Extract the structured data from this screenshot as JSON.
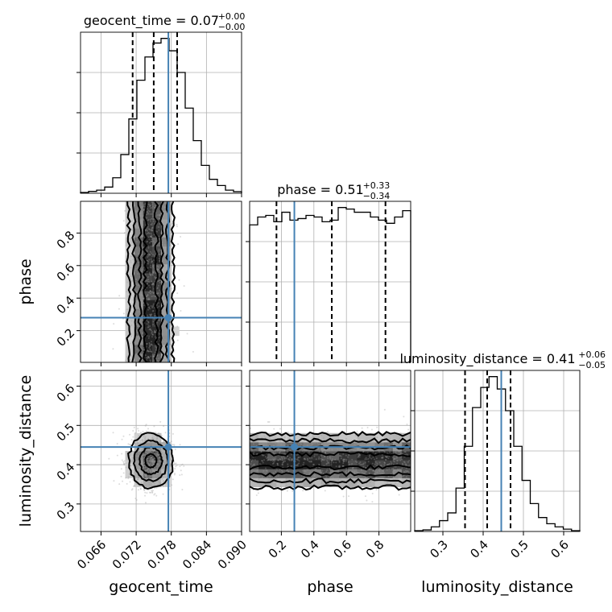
{
  "chart_data": {
    "type": "corner",
    "params": [
      "geocent_time",
      "phase",
      "luminosity_distance"
    ],
    "truth_color": "#4682b4",
    "truths": {
      "geocent_time": 0.0775,
      "phase": 0.28,
      "luminosity_distance": 0.445
    },
    "ranges": {
      "geocent_time": [
        0.0625,
        0.09
      ],
      "phase": [
        0.005,
        0.995
      ],
      "luminosity_distance": [
        0.23,
        0.64
      ]
    },
    "ticks": {
      "geocent_time": [
        0.066,
        0.072,
        0.078,
        0.084,
        0.09
      ],
      "phase": [
        0.2,
        0.4,
        0.6,
        0.8
      ],
      "luminosity_distance": [
        0.3,
        0.4,
        0.5,
        0.6
      ]
    },
    "tick_labels": {
      "geocent_time": [
        "0.066",
        "0.072",
        "0.078",
        "0.084",
        "0.090"
      ],
      "phase": [
        "0.2",
        "0.4",
        "0.6",
        "0.8"
      ],
      "luminosity_distance": [
        "0.3",
        "0.4",
        "0.5",
        "0.6"
      ]
    },
    "axis_labels": {
      "geocent_time": "geocent_time",
      "phase": "phase",
      "luminosity_distance": "luminosity_distance"
    },
    "titles": [
      {
        "param": "geocent_time",
        "text": "geocent_time = 0.07",
        "sup": "+0.00",
        "sub": "−0.00"
      },
      {
        "param": "phase",
        "text": "phase = 0.51",
        "sup": "+0.33",
        "sub": "−0.34"
      },
      {
        "param": "luminosity_distance",
        "text": "luminosity_distance = 0.41",
        "sup": "+0.06",
        "sub": "−0.05"
      }
    ],
    "quantiles": {
      "geocent_time": [
        0.0714,
        0.075,
        0.079
      ],
      "phase": [
        0.17,
        0.51,
        0.84
      ],
      "luminosity_distance": [
        0.355,
        0.41,
        0.468
      ]
    },
    "histograms": {
      "geocent_time": [
        0.005,
        0.012,
        0.02,
        0.04,
        0.1,
        0.25,
        0.48,
        0.73,
        0.88,
        0.97,
        1.0,
        0.92,
        0.78,
        0.55,
        0.34,
        0.18,
        0.09,
        0.05,
        0.02,
        0.01
      ],
      "phase": [
        0.87,
        0.92,
        0.93,
        0.89,
        0.95,
        0.9,
        0.91,
        0.93,
        0.92,
        0.89,
        0.9,
        0.98,
        0.97,
        0.95,
        0.95,
        0.92,
        0.9,
        0.88,
        0.92,
        0.96
      ],
      "luminosity_distance": [
        0.005,
        0.01,
        0.03,
        0.07,
        0.12,
        0.28,
        0.55,
        0.8,
        0.93,
        1.0,
        0.92,
        0.78,
        0.55,
        0.33,
        0.18,
        0.09,
        0.05,
        0.03,
        0.015,
        0.005
      ]
    },
    "posterior_centers": {
      "geocent_time": 0.0745,
      "luminosity_distance": 0.41
    },
    "grid": true
  }
}
